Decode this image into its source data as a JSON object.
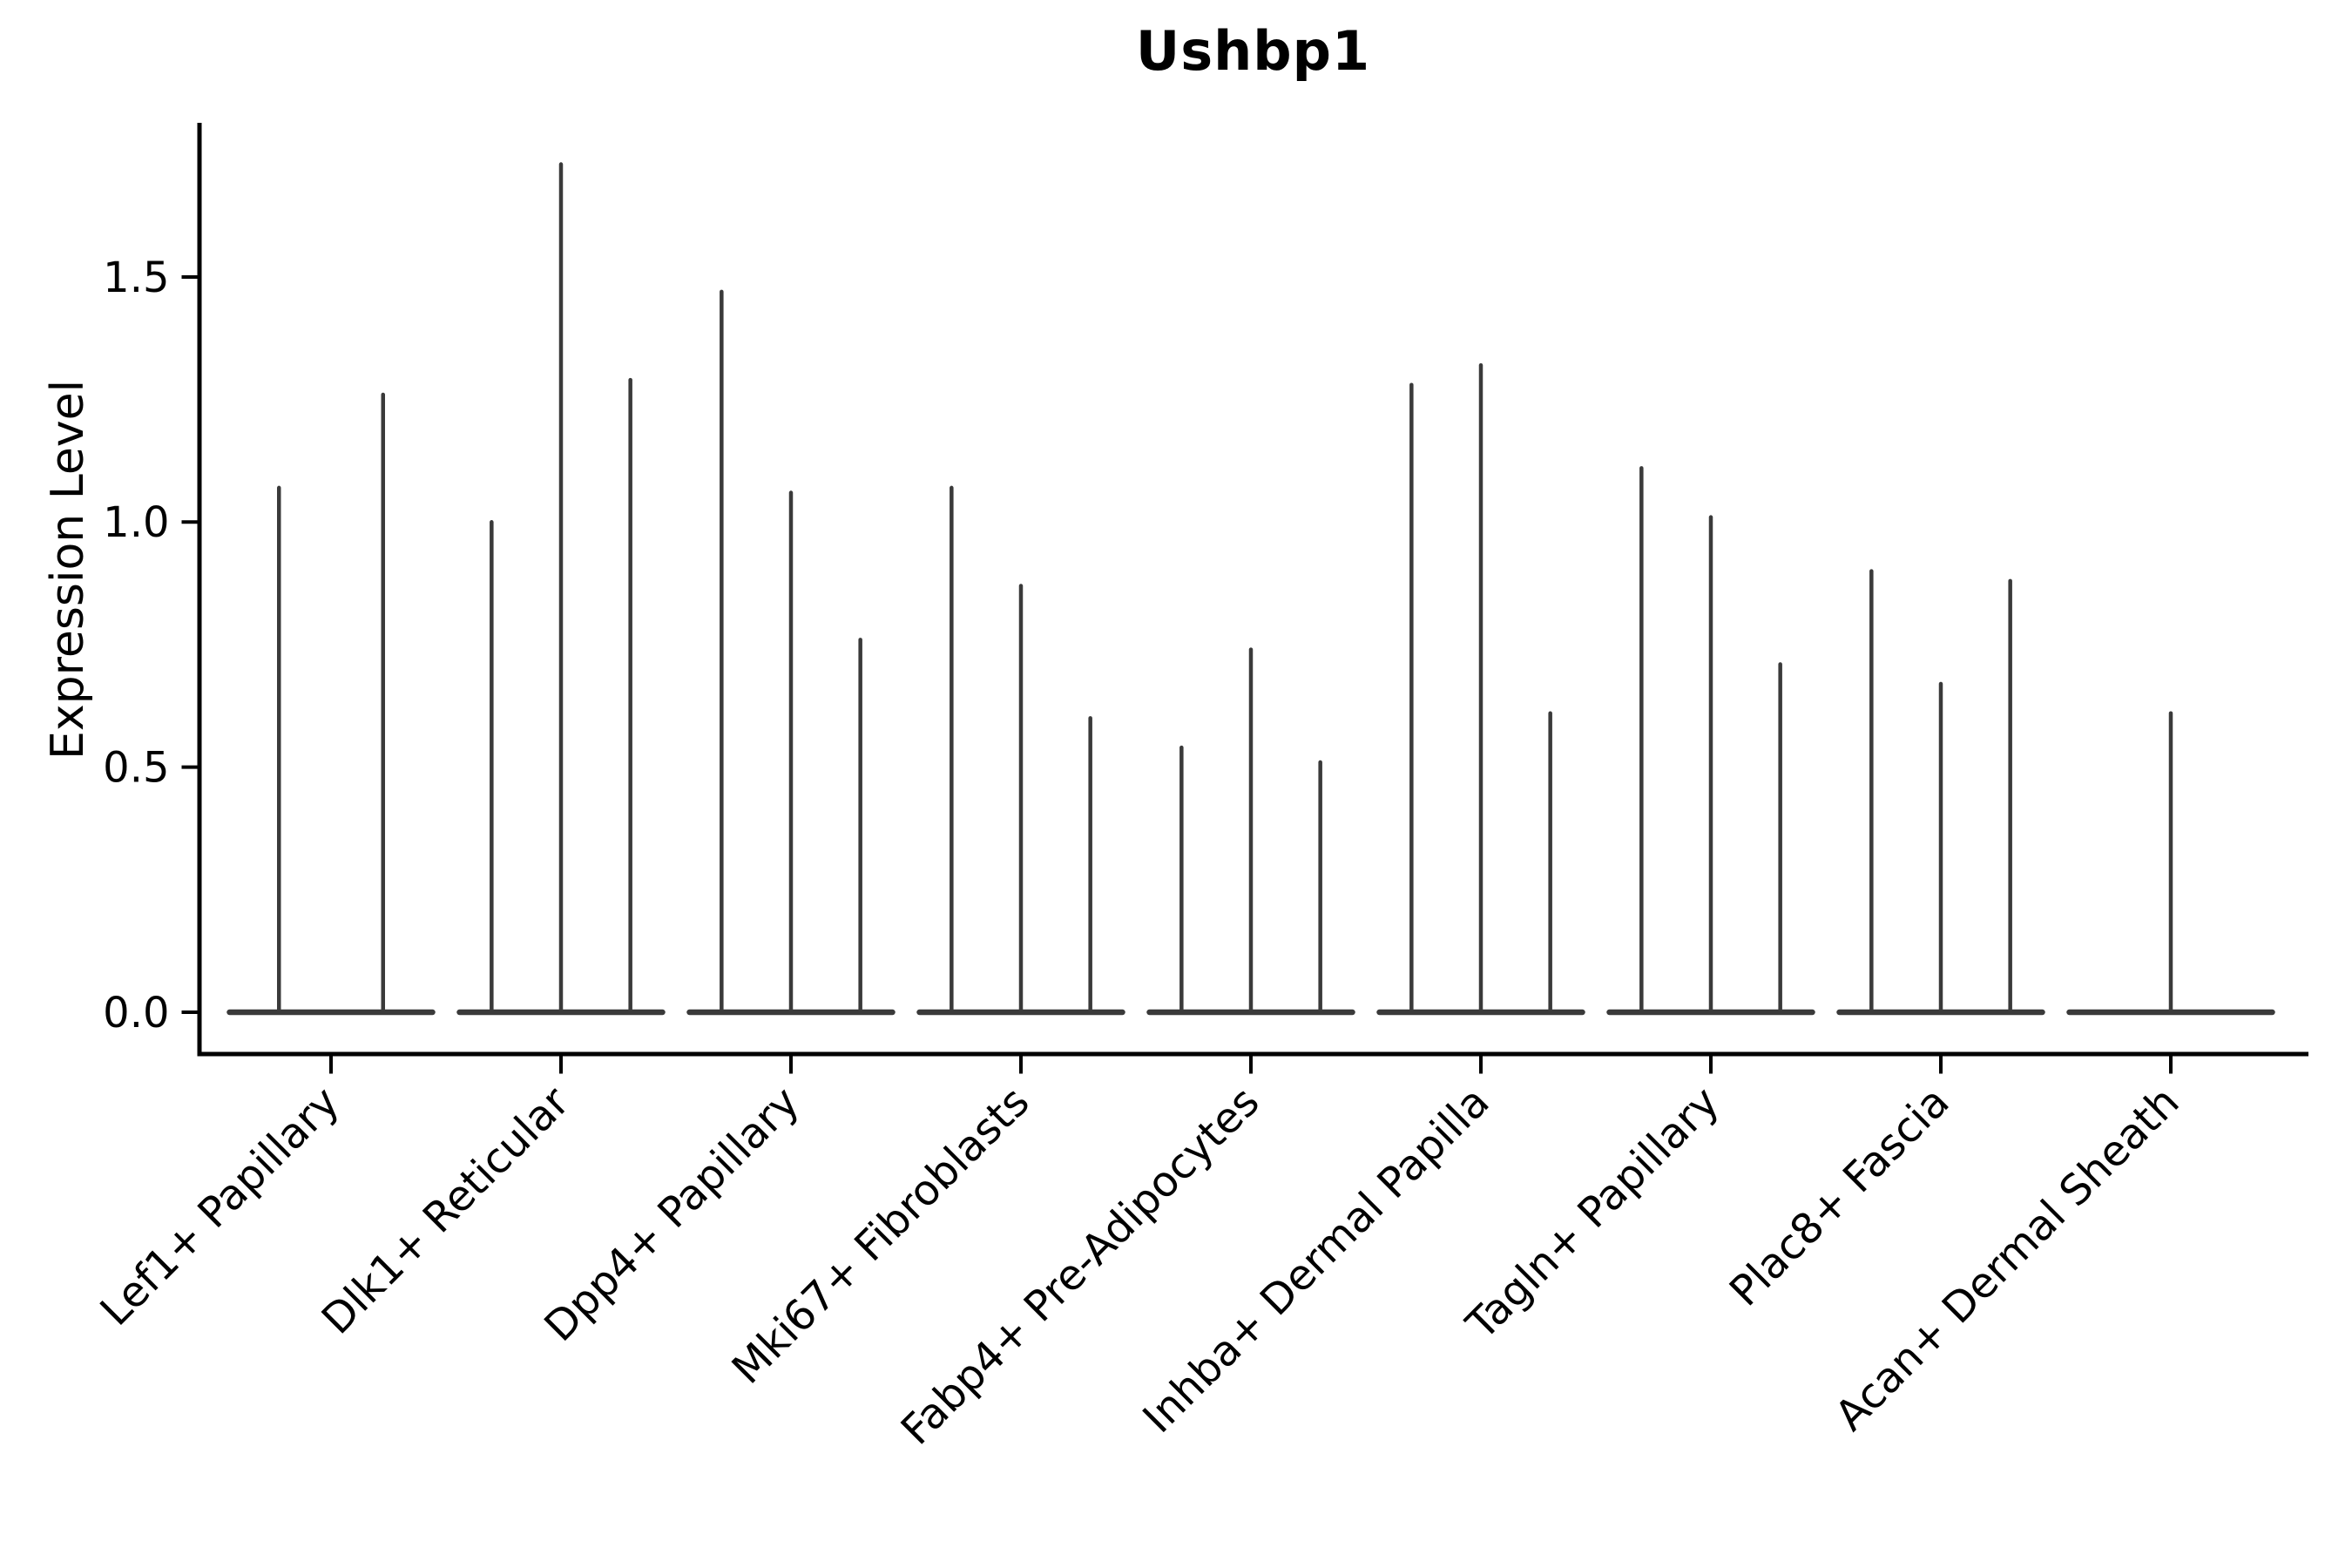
{
  "title": "Ushbp1",
  "chart_data": {
    "type": "violin",
    "title": "Ushbp1",
    "xlabel": "",
    "ylabel": "Expression Level",
    "yticks": [
      0.0,
      0.5,
      1.0,
      1.5
    ],
    "ytick_labels": [
      "0.0",
      "0.5",
      "1.0",
      "1.5"
    ],
    "ylim": [
      -0.085,
      1.815
    ],
    "grid": false,
    "legend_position": "none",
    "violin_color": "#3a3a3a",
    "axis_color": "#000000",
    "categories": [
      {
        "label": "Lef1+ Papillary",
        "spike_values": [
          1.07,
          1.26
        ]
      },
      {
        "label": "Dlk1+ Reticular",
        "spike_values": [
          1.0,
          1.73,
          1.29
        ]
      },
      {
        "label": "Dpp4+ Papillary",
        "spike_values": [
          1.47,
          1.06,
          0.76
        ]
      },
      {
        "label": "Mki67+ Fibroblasts",
        "spike_values": [
          1.07,
          0.87,
          0.6
        ]
      },
      {
        "label": "Fabp4+ Pre-Adipocytes",
        "spike_values": [
          0.54,
          0.74,
          0.51
        ]
      },
      {
        "label": "Inhba+ Dermal Papilla",
        "spike_values": [
          1.28,
          1.32,
          0.61
        ]
      },
      {
        "label": "Tagln+ Papillary",
        "spike_values": [
          1.11,
          1.01,
          0.71
        ]
      },
      {
        "label": "Plac8+ Fascia",
        "spike_values": [
          0.9,
          0.67,
          0.88
        ]
      },
      {
        "label": "Acan+ Dermal Sheath",
        "spike_values": [
          0.61
        ]
      }
    ]
  }
}
